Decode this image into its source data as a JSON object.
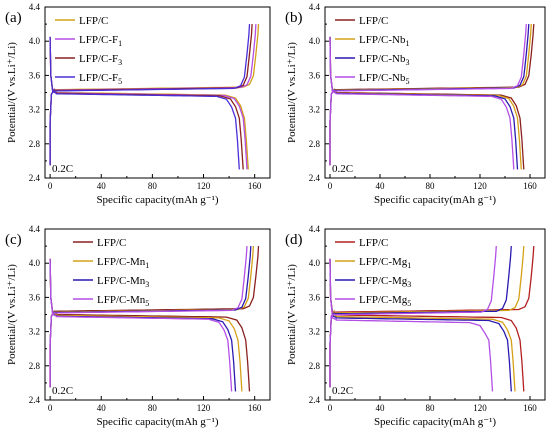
{
  "chart_data": [
    {
      "type": "line",
      "panel_label": "(a)",
      "rate_label": "0.2C",
      "xlabel": "Specific capacity(mAh g⁻¹)",
      "ylabel": "Potential/(V vs.Li⁺/Li)",
      "xlim": [
        -4,
        172
      ],
      "ylim": [
        2.4,
        4.4
      ],
      "xticks": [
        "0",
        "40",
        "80",
        "120",
        "160"
      ],
      "yticks": [
        "2.4",
        "2.8",
        "3.2",
        "3.6",
        "4.0",
        "4.4"
      ],
      "legend_position": "top-left",
      "grid": false,
      "series": [
        {
          "name": "LFP/C",
          "color": "#d4a017",
          "charge_plateau_V": 3.445,
          "discharge_plateau_V": 3.395,
          "charge_capacity": 163,
          "discharge_capacity": 155
        },
        {
          "name": "LFP/C-F1",
          "color": "#b44fe6",
          "charge_plateau_V": 3.44,
          "discharge_plateau_V": 3.39,
          "charge_capacity": 161,
          "discharge_capacity": 154
        },
        {
          "name": "LFP/C-F3",
          "color": "#8b2020",
          "charge_plateau_V": 3.435,
          "discharge_plateau_V": 3.385,
          "charge_capacity": 158,
          "discharge_capacity": 151
        },
        {
          "name": "LFP/C-F5",
          "color": "#4a2fd8",
          "charge_plateau_V": 3.43,
          "discharge_plateau_V": 3.38,
          "charge_capacity": 156,
          "discharge_capacity": 148
        }
      ]
    },
    {
      "type": "line",
      "panel_label": "(b)",
      "rate_label": "0.2C",
      "xlabel": "Specific capacity(mAh g⁻¹)",
      "ylabel": "Potential/(V vs.Li⁺/Li)",
      "xlim": [
        -4,
        172
      ],
      "ylim": [
        2.4,
        4.4
      ],
      "xticks": [
        "0",
        "40",
        "80",
        "120",
        "160"
      ],
      "yticks": [
        "2.4",
        "2.8",
        "3.2",
        "3.6",
        "4.0",
        "4.4"
      ],
      "legend_position": "top-left",
      "grid": false,
      "series": [
        {
          "name": "LFP/C",
          "color": "#8b2020",
          "charge_plateau_V": 3.445,
          "discharge_plateau_V": 3.395,
          "charge_capacity": 163,
          "discharge_capacity": 155
        },
        {
          "name": "LFP/C-Nb1",
          "color": "#d4a017",
          "charge_plateau_V": 3.44,
          "discharge_plateau_V": 3.39,
          "charge_capacity": 161,
          "discharge_capacity": 153
        },
        {
          "name": "LFP/C-Nb3",
          "color": "#2a1ab0",
          "charge_plateau_V": 3.435,
          "discharge_plateau_V": 3.385,
          "charge_capacity": 159,
          "discharge_capacity": 150
        },
        {
          "name": "LFP/C-Nb5",
          "color": "#b44fe6",
          "charge_plateau_V": 3.43,
          "discharge_plateau_V": 3.38,
          "charge_capacity": 157,
          "discharge_capacity": 147
        }
      ]
    },
    {
      "type": "line",
      "panel_label": "(c)",
      "rate_label": "0.2C",
      "xlabel": "Specific capacity(mAh g⁻¹)",
      "ylabel": "Potential/(V vs.Li⁺/Li)",
      "xlim": [
        -4,
        172
      ],
      "ylim": [
        2.4,
        4.4
      ],
      "xticks": [
        "0",
        "40",
        "80",
        "120",
        "160"
      ],
      "yticks": [
        "2.4",
        "2.8",
        "3.2",
        "3.6",
        "4.0",
        "4.4"
      ],
      "legend_position": "top-right",
      "grid": false,
      "series": [
        {
          "name": "LFP/C",
          "color": "#8b2020",
          "charge_plateau_V": 3.45,
          "discharge_plateau_V": 3.395,
          "charge_capacity": 163,
          "discharge_capacity": 156
        },
        {
          "name": "LFP/C-Mn1",
          "color": "#d4a017",
          "charge_plateau_V": 3.44,
          "discharge_plateau_V": 3.385,
          "charge_capacity": 159,
          "discharge_capacity": 150
        },
        {
          "name": "LFP/C-Mn3",
          "color": "#2a1ab0",
          "charge_plateau_V": 3.435,
          "discharge_plateau_V": 3.375,
          "charge_capacity": 157,
          "discharge_capacity": 145
        },
        {
          "name": "LFP/C-Mn5",
          "color": "#b44fe6",
          "charge_plateau_V": 3.43,
          "discharge_plateau_V": 3.37,
          "charge_capacity": 154,
          "discharge_capacity": 142
        }
      ]
    },
    {
      "type": "line",
      "panel_label": "(d)",
      "rate_label": "0.2C",
      "xlabel": "Specific capacity(mAh g⁻¹)",
      "ylabel": "Potential/(V vs.Li⁺/Li)",
      "xlim": [
        -4,
        172
      ],
      "ylim": [
        2.4,
        4.4
      ],
      "xticks": [
        "0",
        "40",
        "80",
        "120",
        "160"
      ],
      "yticks": [
        "2.4",
        "2.8",
        "3.2",
        "3.6",
        "4.0",
        "4.4"
      ],
      "legend_position": "top-left",
      "grid": false,
      "series": [
        {
          "name": "LFP/C",
          "color": "#b22020",
          "charge_plateau_V": 3.44,
          "discharge_plateau_V": 3.39,
          "charge_capacity": 163,
          "discharge_capacity": 155
        },
        {
          "name": "LFP/C-Mg1",
          "color": "#d4a017",
          "charge_plateau_V": 3.43,
          "discharge_plateau_V": 3.37,
          "charge_capacity": 155,
          "discharge_capacity": 148
        },
        {
          "name": "LFP/C-Mg3",
          "color": "#2a1ab0",
          "charge_plateau_V": 3.42,
          "discharge_plateau_V": 3.355,
          "charge_capacity": 145,
          "discharge_capacity": 145
        },
        {
          "name": "LFP/C-Mg5",
          "color": "#b44fe6",
          "charge_plateau_V": 3.41,
          "discharge_plateau_V": 3.33,
          "charge_capacity": 133,
          "discharge_capacity": 130
        }
      ]
    }
  ]
}
